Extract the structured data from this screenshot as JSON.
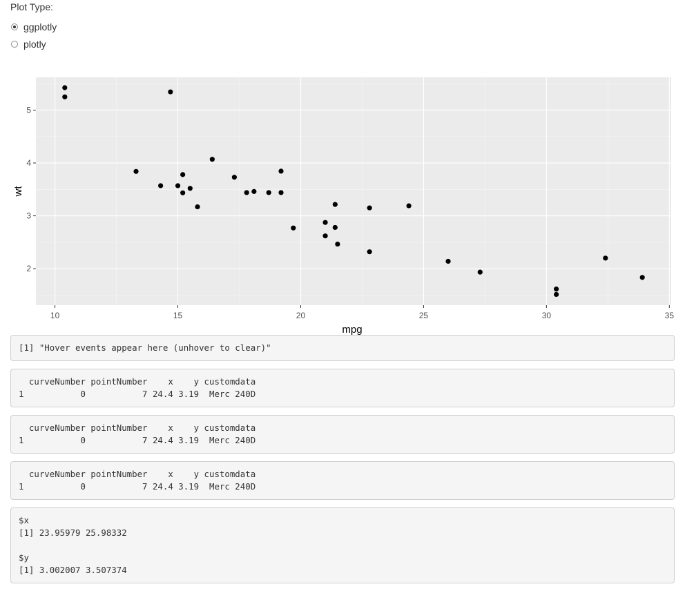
{
  "plot_type": {
    "title": "Plot Type:",
    "options": [
      "ggplotly",
      "plotly"
    ],
    "selected": "ggplotly"
  },
  "chart_data": {
    "type": "scatter",
    "xlabel": "mpg",
    "ylabel": "wt",
    "x_ticks": [
      10,
      15,
      20,
      25,
      30,
      35
    ],
    "y_ticks": [
      2,
      3,
      4,
      5
    ],
    "xlim": [
      9.225,
      35.075
    ],
    "ylim": [
      1.31,
      5.62
    ],
    "grid": true,
    "points": [
      {
        "x": 21.0,
        "y": 2.62
      },
      {
        "x": 21.0,
        "y": 2.875
      },
      {
        "x": 22.8,
        "y": 2.32
      },
      {
        "x": 21.4,
        "y": 3.215
      },
      {
        "x": 18.7,
        "y": 3.44
      },
      {
        "x": 18.1,
        "y": 3.46
      },
      {
        "x": 14.3,
        "y": 3.57
      },
      {
        "x": 24.4,
        "y": 3.19
      },
      {
        "x": 22.8,
        "y": 3.15
      },
      {
        "x": 19.2,
        "y": 3.44
      },
      {
        "x": 17.8,
        "y": 3.44
      },
      {
        "x": 16.4,
        "y": 4.07
      },
      {
        "x": 17.3,
        "y": 3.73
      },
      {
        "x": 15.2,
        "y": 3.78
      },
      {
        "x": 10.4,
        "y": 5.25
      },
      {
        "x": 10.4,
        "y": 5.424
      },
      {
        "x": 14.7,
        "y": 5.345
      },
      {
        "x": 32.4,
        "y": 2.2
      },
      {
        "x": 30.4,
        "y": 1.615
      },
      {
        "x": 33.9,
        "y": 1.835
      },
      {
        "x": 21.5,
        "y": 2.465
      },
      {
        "x": 15.5,
        "y": 3.52
      },
      {
        "x": 15.2,
        "y": 3.435
      },
      {
        "x": 13.3,
        "y": 3.84
      },
      {
        "x": 19.2,
        "y": 3.845
      },
      {
        "x": 27.3,
        "y": 1.935
      },
      {
        "x": 26.0,
        "y": 2.14
      },
      {
        "x": 30.4,
        "y": 1.513
      },
      {
        "x": 15.8,
        "y": 3.17
      },
      {
        "x": 19.7,
        "y": 2.77
      },
      {
        "x": 15.0,
        "y": 3.57
      },
      {
        "x": 21.4,
        "y": 2.78
      }
    ]
  },
  "outputs": {
    "hover": "[1] \"Hover events appear here (unhover to clear)\"",
    "click": "  curveNumber pointNumber    x    y customdata\n1           0           7 24.4 3.19  Merc 240D",
    "relayout": "  curveNumber pointNumber    x    y customdata\n1           0           7 24.4 3.19  Merc 240D",
    "selected": "  curveNumber pointNumber    x    y customdata\n1           0           7 24.4 3.19  Merc 240D",
    "brush": "$x\n[1] 23.95979 25.98332\n\n$y\n[1] 3.002007 3.507374"
  }
}
